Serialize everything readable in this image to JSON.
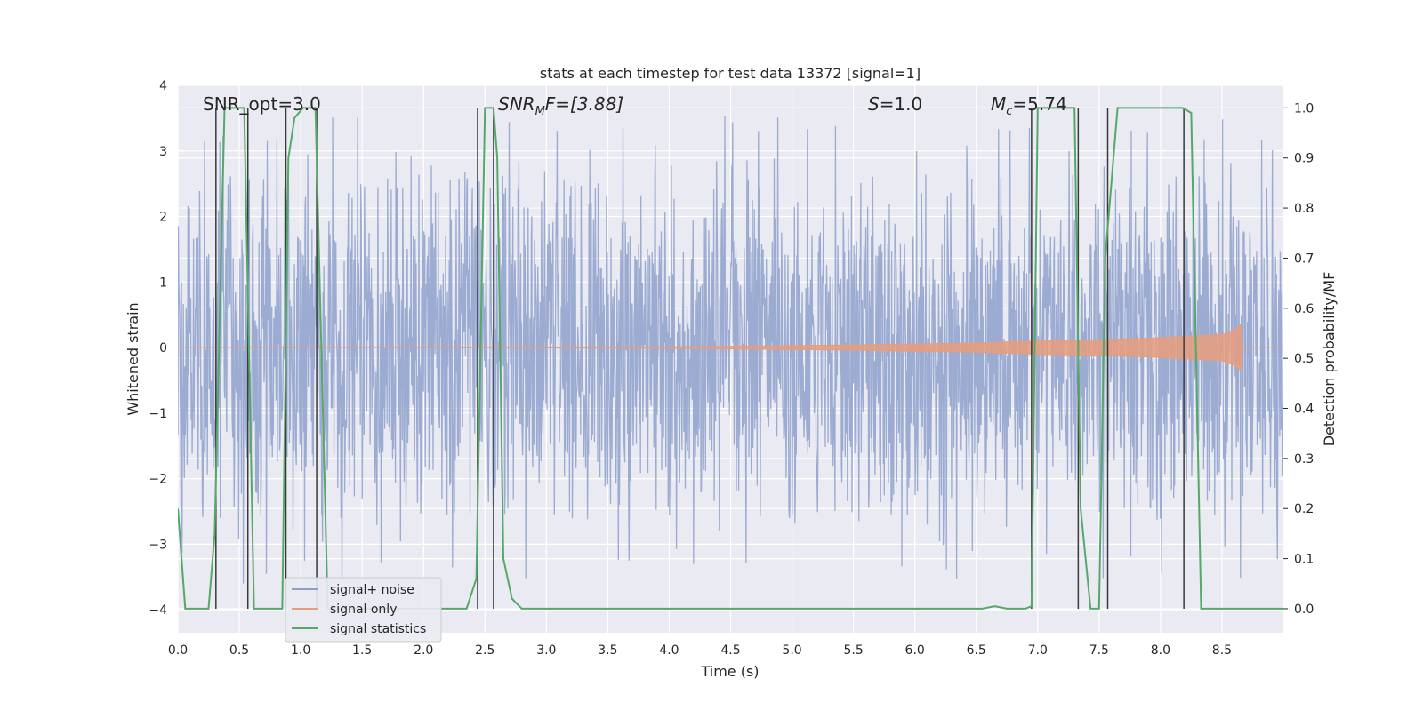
{
  "chart_data": {
    "type": "line",
    "title": "stats at each timestep for test data 13372 [signal=1]",
    "xlabel": "Time (s)",
    "ylabel": "Whitened strain",
    "ylabel_right": "Detection probability/MF",
    "xlim": [
      0.0,
      9.0
    ],
    "ylim": [
      -4.35,
      4.0
    ],
    "ylim_right": [
      -0.048,
      1.045
    ],
    "xticks": [
      0.0,
      0.5,
      1.0,
      1.5,
      2.0,
      2.5,
      3.0,
      3.5,
      4.0,
      4.5,
      5.0,
      5.5,
      6.0,
      6.5,
      7.0,
      7.5,
      8.0,
      8.5
    ],
    "xtick_labels": [
      "0.0",
      "0.5",
      "1.0",
      "1.5",
      "2.0",
      "2.5",
      "3.0",
      "3.5",
      "4.0",
      "4.5",
      "5.0",
      "5.5",
      "6.0",
      "6.5",
      "7.0",
      "7.5",
      "8.0",
      "8.5"
    ],
    "yticks": [
      -4,
      -3,
      -2,
      -1,
      0,
      1,
      2,
      3,
      4
    ],
    "ytick_labels": [
      "−4",
      "−3",
      "−2",
      "−1",
      "0",
      "1",
      "2",
      "3",
      "4"
    ],
    "yticks_right": [
      0.0,
      0.1,
      0.2,
      0.3,
      0.4,
      0.5,
      0.6,
      0.7,
      0.8,
      0.9,
      1.0
    ],
    "ytick_right_labels": [
      "0.0",
      "0.1",
      "0.2",
      "0.3",
      "0.4",
      "0.5",
      "0.6",
      "0.7",
      "0.8",
      "0.9",
      "1.0"
    ],
    "grid": true,
    "legend_position": "lower-left",
    "legend": [
      {
        "name": "signal+ noise",
        "color": "#8da0cb"
      },
      {
        "name": "signal only",
        "color": "#e89c7c"
      },
      {
        "name": "signal statistics",
        "color": "#55a868"
      }
    ],
    "annotations": {
      "snr_opt": "SNR_opt=3.0",
      "snr_mf_sym": "SNR",
      "snr_mf_sub": "M",
      "snr_mf_rest": "F=[3.88]",
      "s_sym": "S",
      "s_rest": "=1.0",
      "mc_sym": "M",
      "mc_sub": "c",
      "mc_rest": "=5.74"
    },
    "noise_series": {
      "name": "signal+ noise",
      "color": "#8da0cb",
      "x_range": [
        0.0,
        9.0
      ],
      "typical_range": [
        -1.7,
        1.7
      ],
      "extreme_range": [
        -3.8,
        3.6
      ]
    },
    "signal_only": {
      "name": "signal only",
      "color": "#e89c7c",
      "x": [
        0.0,
        4.0,
        5.5,
        6.5,
        7.0,
        7.5,
        8.0,
        8.5,
        8.6,
        8.65,
        8.67,
        9.0
      ],
      "amplitude": [
        0.0,
        0.01,
        0.04,
        0.07,
        0.1,
        0.12,
        0.15,
        0.2,
        0.27,
        0.35,
        0.0,
        0.0
      ]
    },
    "statistics": {
      "name": "signal statistics",
      "color": "#55a868",
      "x": [
        0.0,
        0.06,
        0.25,
        0.3,
        0.38,
        0.44,
        0.54,
        0.62,
        0.7,
        0.85,
        0.9,
        0.95,
        1.02,
        1.12,
        1.22,
        1.3,
        2.35,
        2.43,
        2.5,
        2.57,
        2.6,
        2.65,
        2.72,
        2.8,
        3.0,
        4.0,
        5.0,
        6.55,
        6.65,
        6.75,
        6.9,
        6.95,
        7.0,
        7.3,
        7.35,
        7.43,
        7.5,
        7.55,
        7.65,
        8.18,
        8.25,
        8.33,
        8.5,
        8.6,
        9.0
      ],
      "values": [
        0.2,
        0.0,
        0.0,
        0.15,
        1.0,
        1.0,
        1.0,
        0.0,
        0.0,
        0.0,
        0.9,
        0.98,
        1.0,
        1.0,
        0.0,
        0.0,
        0.0,
        0.06,
        1.0,
        1.0,
        0.9,
        0.1,
        0.02,
        0.0,
        0.0,
        0.0,
        0.0,
        0.0,
        0.005,
        0.0,
        0.0,
        0.005,
        1.0,
        1.0,
        0.2,
        0.0,
        0.0,
        0.7,
        1.0,
        1.0,
        0.99,
        0.0,
        0.0,
        0.0,
        0.0
      ]
    },
    "detection_markers": {
      "color": "#3a3a3a",
      "x": [
        0.31,
        0.57,
        0.88,
        1.13,
        2.44,
        2.57,
        6.95,
        7.33,
        7.57,
        8.19
      ]
    }
  }
}
